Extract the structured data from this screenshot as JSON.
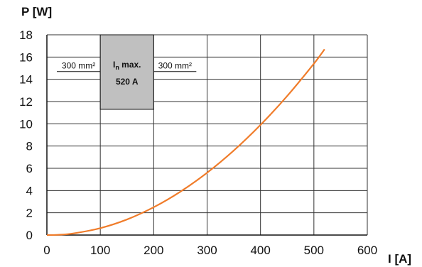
{
  "chart_data": {
    "type": "line",
    "xlabel": "I [A]",
    "ylabel": "P [W]",
    "xlim": [
      0,
      600
    ],
    "ylim": [
      0,
      18
    ],
    "x_ticks": [
      0,
      100,
      200,
      300,
      400,
      500,
      600
    ],
    "y_ticks": [
      0,
      2,
      4,
      6,
      8,
      10,
      12,
      14,
      16,
      18
    ],
    "grid": true,
    "series": [
      {
        "color": "#f07c2a",
        "x": [
          0,
          20,
          50,
          100,
          150,
          200,
          250,
          300,
          350,
          400,
          450,
          500,
          520
        ],
        "y": [
          0,
          0.02,
          0.15,
          0.62,
          1.4,
          2.5,
          3.9,
          5.6,
          7.6,
          9.9,
          12.5,
          15.4,
          16.7
        ]
      }
    ],
    "annotation": {
      "left_label": "300 mm²",
      "right_label": "300 mm²",
      "box_line1_main": "I",
      "box_line1_sub": "n",
      "box_line1_rest": " max.",
      "box_line2": "520 A",
      "box_x_range": [
        100,
        200
      ],
      "box_y_range": [
        11.3,
        18
      ],
      "label_line_y": 14.7,
      "box_fill": "#c0c0c0"
    }
  }
}
